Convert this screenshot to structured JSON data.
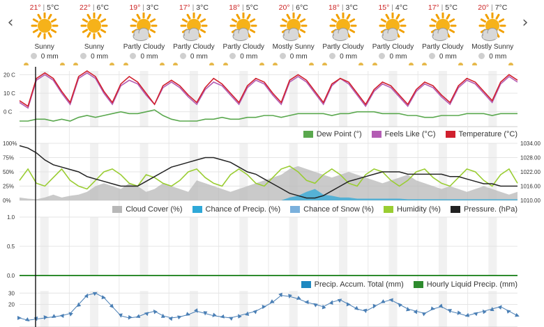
{
  "navigation": {
    "prev_icon": "chevron-left-icon",
    "next_icon": "chevron-right-icon",
    "prev_glyph": "‹",
    "next_glyph": "›"
  },
  "forecast": [
    {
      "high": "21°",
      "low": "5°C",
      "condition": "Sunny",
      "precip": "0 mm",
      "icon": "sunny"
    },
    {
      "high": "22°",
      "low": "6°C",
      "condition": "Sunny",
      "precip": "0 mm",
      "icon": "sunny"
    },
    {
      "high": "19°",
      "low": "3°C",
      "condition": "Partly Cloudy",
      "precip": "0 mm",
      "icon": "partly-cloudy"
    },
    {
      "high": "17°",
      "low": "3°C",
      "condition": "Partly Cloudy",
      "precip": "0 mm",
      "icon": "partly-cloudy"
    },
    {
      "high": "18°",
      "low": "5°C",
      "condition": "Partly Cloudy",
      "precip": "0 mm",
      "icon": "partly-cloudy"
    },
    {
      "high": "20°",
      "low": "6°C",
      "condition": "Mostly Sunny",
      "precip": "0 mm",
      "icon": "mostly-sunny"
    },
    {
      "high": "18°",
      "low": "3°C",
      "condition": "Partly Cloudy",
      "precip": "0 mm",
      "icon": "partly-cloudy"
    },
    {
      "high": "15°",
      "low": "4°C",
      "condition": "Partly Cloudy",
      "precip": "0 mm",
      "icon": "partly-cloudy"
    },
    {
      "high": "17°",
      "low": "5°C",
      "condition": "Partly Cloudy",
      "precip": "0 mm",
      "icon": "partly-cloudy"
    },
    {
      "high": "20°",
      "low": "7°C",
      "condition": "Mostly Sunny",
      "precip": "0 mm",
      "icon": "mostly-sunny"
    }
  ],
  "colors": {
    "temperature": "#d0202e",
    "feels_like": "#b35cb3",
    "dew_point": "#5aa84e",
    "cloud_cover": "#b8b8b8",
    "chance_precip": "#2ea8d8",
    "chance_snow": "#7ab0dc",
    "humidity": "#9acd32",
    "pressure": "#222222",
    "precip_accum": "#1e88c0",
    "hourly_liquid": "#2e8b2e",
    "wind": "#4a7fb5",
    "grid": "#e4e4e4",
    "band": "#f1f1f1"
  },
  "chart_data": [
    {
      "type": "line",
      "yticks": [
        "20 C",
        "10 C",
        "0 C"
      ],
      "ylim": [
        -8,
        22
      ],
      "legend_placement": "bottom-right",
      "series": [
        {
          "name": "Dew Point (°)",
          "values": [
            -5,
            -5,
            -4,
            -4,
            -5,
            -4,
            -5,
            -3,
            -2,
            -3,
            -2,
            -1,
            0,
            -1,
            -1,
            0,
            1,
            -2,
            -4,
            -5,
            -5,
            -5,
            -4,
            -4,
            -3,
            -4,
            -4,
            -3,
            -3,
            -2,
            -2,
            -3,
            -2,
            -1,
            -1,
            -1,
            -1,
            -2,
            -1,
            -1,
            0,
            0,
            0,
            -1,
            -1,
            -1,
            -2,
            -2,
            -3,
            -3,
            -2,
            -2,
            -2,
            -1,
            -1,
            -1,
            -2,
            -1,
            -1,
            -1
          ]
        },
        {
          "name": "Feels Like (°C)",
          "values": [
            5,
            2,
            17,
            20,
            17,
            10,
            4,
            18,
            21,
            18,
            10,
            4,
            14,
            17,
            15,
            9,
            4,
            13,
            16,
            13,
            8,
            4,
            12,
            16,
            14,
            9,
            4,
            13,
            17,
            15,
            9,
            4,
            16,
            19,
            16,
            10,
            4,
            14,
            18,
            15,
            9,
            3,
            11,
            15,
            13,
            8,
            3,
            11,
            15,
            13,
            8,
            4,
            13,
            17,
            15,
            10,
            5,
            15,
            19,
            16
          ]
        },
        {
          "name": "Temperature (°C)",
          "values": [
            6,
            3,
            18,
            21,
            18,
            11,
            5,
            19,
            22,
            19,
            11,
            5,
            15,
            19,
            16,
            10,
            4,
            14,
            17,
            14,
            9,
            5,
            13,
            18,
            15,
            10,
            5,
            14,
            18,
            16,
            10,
            5,
            17,
            20,
            17,
            11,
            5,
            15,
            18,
            16,
            10,
            4,
            12,
            16,
            14,
            9,
            4,
            12,
            16,
            14,
            9,
            5,
            14,
            18,
            16,
            11,
            6,
            16,
            20,
            17
          ]
        }
      ]
    },
    {
      "type": "area",
      "yticks_left": [
        "100%",
        "75%",
        "50%",
        "25%",
        "0%"
      ],
      "yticks_right": [
        "1034.00",
        "1028.00",
        "1022.00",
        "1016.00",
        "1010.00"
      ],
      "ylim": [
        0,
        100
      ],
      "y2lim": [
        1010,
        1034
      ],
      "legend_placement": "bottom-right",
      "series": [
        {
          "name": "Cloud Cover (%)",
          "values": [
            5,
            3,
            2,
            5,
            10,
            5,
            8,
            10,
            15,
            25,
            30,
            25,
            20,
            30,
            25,
            15,
            20,
            30,
            25,
            20,
            15,
            35,
            30,
            25,
            20,
            15,
            20,
            25,
            30,
            35,
            40,
            45,
            55,
            60,
            55,
            50,
            45,
            40,
            45,
            50,
            45,
            40,
            35,
            30,
            35,
            40,
            45,
            35,
            30,
            25,
            20,
            25,
            20,
            15,
            20,
            25,
            20,
            15,
            10,
            15
          ]
        },
        {
          "name": "Chance of Precip. (%)",
          "values": [
            0,
            0,
            0,
            0,
            0,
            0,
            0,
            0,
            0,
            0,
            0,
            0,
            0,
            0,
            0,
            0,
            0,
            0,
            0,
            0,
            0,
            0,
            0,
            0,
            0,
            0,
            0,
            0,
            0,
            0,
            0,
            0,
            5,
            8,
            15,
            20,
            10,
            8,
            5,
            5,
            3,
            3,
            3,
            3,
            3,
            3,
            2,
            2,
            2,
            2,
            2,
            2,
            2,
            2,
            2,
            2,
            2,
            2,
            2,
            2
          ]
        },
        {
          "name": "Chance of Snow (%)",
          "values": [
            0,
            0,
            0,
            0,
            0,
            0,
            0,
            0,
            0,
            0,
            0,
            0,
            0,
            0,
            0,
            0,
            0,
            0,
            0,
            0,
            0,
            0,
            0,
            0,
            0,
            0,
            0,
            0,
            0,
            0,
            0,
            0,
            0,
            0,
            0,
            0,
            0,
            0,
            0,
            0,
            0,
            0,
            0,
            0,
            0,
            0,
            0,
            0,
            0,
            0,
            0,
            0,
            0,
            0,
            0,
            0,
            0,
            0,
            0,
            0
          ]
        },
        {
          "name": "Humidity (%)",
          "values": [
            35,
            55,
            30,
            25,
            40,
            55,
            35,
            25,
            20,
            35,
            50,
            55,
            45,
            30,
            25,
            45,
            40,
            30,
            25,
            35,
            50,
            55,
            40,
            30,
            25,
            45,
            55,
            45,
            30,
            25,
            40,
            55,
            60,
            50,
            35,
            30,
            45,
            55,
            45,
            30,
            25,
            45,
            55,
            50,
            35,
            25,
            35,
            50,
            55,
            40,
            30,
            25,
            40,
            55,
            50,
            35,
            25,
            45,
            55,
            30
          ]
        },
        {
          "name": "Pressure. (hPa)",
          "axis": "right",
          "values": [
            1033,
            1032,
            1030,
            1027,
            1025,
            1024,
            1023,
            1022,
            1020,
            1019,
            1018,
            1017,
            1016,
            1016,
            1016,
            1018,
            1020,
            1022,
            1024,
            1025,
            1026,
            1027,
            1028,
            1028,
            1027,
            1026,
            1024,
            1022,
            1021,
            1019,
            1017,
            1015,
            1013,
            1012,
            1011,
            1011,
            1012,
            1014,
            1016,
            1018,
            1019,
            1020,
            1021,
            1022,
            1022,
            1022,
            1021,
            1021,
            1021,
            1021,
            1021,
            1020,
            1020,
            1019,
            1018,
            1017,
            1017,
            1016,
            1016,
            1016
          ]
        }
      ]
    },
    {
      "type": "bar",
      "yticks": [
        "1.0",
        "0.5",
        "0.0"
      ],
      "ylim": [
        0,
        1
      ],
      "legend_placement": "bottom-right",
      "series": [
        {
          "name": "Precip. Accum. Total (mm)",
          "values": [
            0,
            0,
            0,
            0,
            0,
            0,
            0,
            0,
            0,
            0
          ]
        },
        {
          "name": "Hourly Liquid Precip. (mm)",
          "values": [
            0,
            0,
            0,
            0,
            0,
            0,
            0,
            0,
            0,
            0
          ]
        }
      ]
    },
    {
      "type": "line",
      "yticks": [
        "30",
        "20"
      ],
      "ylim": [
        0,
        32
      ],
      "series": [
        {
          "values": [
            8,
            6,
            7,
            8,
            9,
            10,
            12,
            20,
            28,
            30,
            26,
            18,
            10,
            8,
            9,
            12,
            14,
            10,
            8,
            9,
            11,
            14,
            12,
            10,
            9,
            8,
            10,
            12,
            14,
            18,
            22,
            28,
            27,
            25,
            22,
            20,
            18,
            22,
            24,
            20,
            16,
            14,
            18,
            22,
            24,
            20,
            16,
            14,
            12,
            16,
            18,
            14,
            12,
            10,
            12,
            14,
            16,
            18,
            14,
            10
          ]
        }
      ]
    }
  ]
}
